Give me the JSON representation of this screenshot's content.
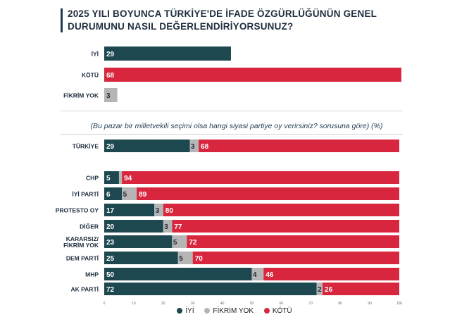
{
  "title": "2025 YILI BOYUNCA TÜRKİYE'DE İFADE ÖZGÜRLÜĞÜNÜN GENEL DURUMUNU NASIL DEĞERLENDİRİYORSUNUZ?",
  "subtitle": "(Bu pazar bir milletvekili seçimi olsa hangi siyasi partiye oy verirsiniz? sorusuna göre) (%)",
  "colors": {
    "iyi": "#1e4850",
    "fikrim_yok": "#b5b5b5",
    "kotu": "#d7263d"
  },
  "legend": [
    {
      "label": "İYİ",
      "color": "#1e4850"
    },
    {
      "label": "FİKRİM YOK",
      "color": "#b5b5b5"
    },
    {
      "label": "KÖTÜ",
      "color": "#d7263d"
    }
  ],
  "chart_data": [
    {
      "type": "bar",
      "orientation": "horizontal",
      "categories": [
        "İYİ",
        "KÖTÜ",
        "FİKRİM YOK"
      ],
      "values": [
        29,
        68,
        3
      ],
      "colors": [
        "#1e4850",
        "#d7263d",
        "#b5b5b5"
      ],
      "xlim": [
        0,
        68
      ]
    },
    {
      "type": "bar",
      "orientation": "horizontal",
      "stacked": true,
      "categories": [
        "TÜRKİYE",
        "CHP",
        "İYİ PARTİ",
        "PROTESTO OY",
        "DİĞER",
        "KARARSIZ/\nFİKRİM YOK",
        "DEM PARTİ",
        "MHP",
        "AK PARTİ"
      ],
      "series": [
        {
          "name": "İYİ",
          "values": [
            29,
            5,
            6,
            17,
            20,
            23,
            25,
            50,
            72
          ]
        },
        {
          "name": "FİKRİM YOK",
          "values": [
            3,
            1,
            5,
            3,
            3,
            5,
            5,
            4,
            2
          ]
        },
        {
          "name": "KÖTÜ",
          "values": [
            68,
            94,
            89,
            80,
            77,
            72,
            70,
            46,
            26
          ]
        }
      ],
      "xticks": [
        0,
        10,
        20,
        30,
        40,
        50,
        60,
        70,
        80,
        90,
        100
      ],
      "xlim": [
        0,
        100
      ],
      "legend_position": "bottom"
    }
  ]
}
